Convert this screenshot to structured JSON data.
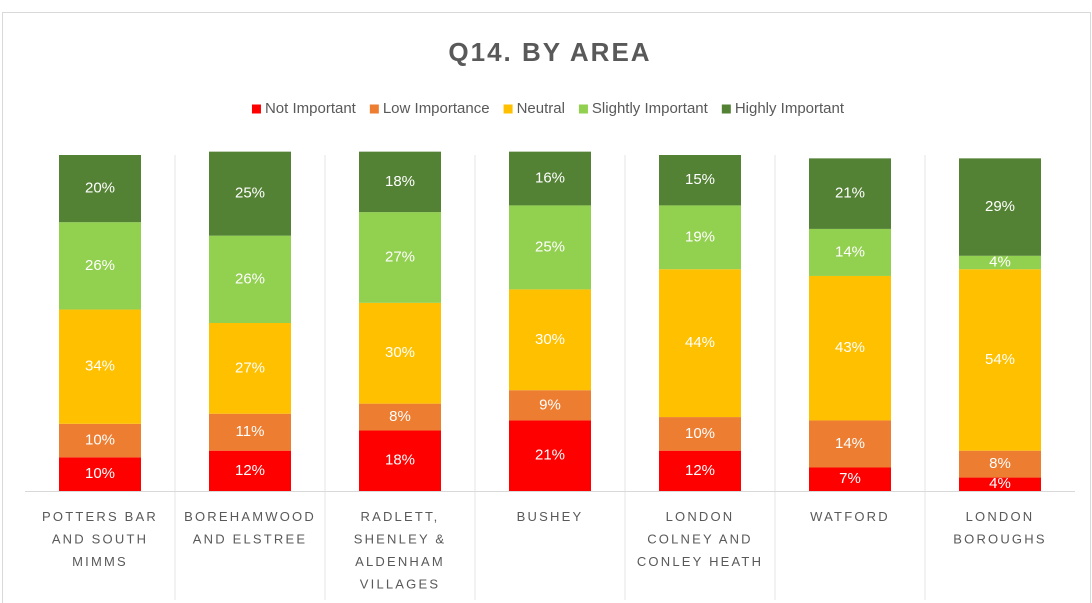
{
  "chart_data": {
    "type": "stacked_bar",
    "title": "Q14. BY AREA",
    "categories": [
      "POTTERS BAR AND SOUTH MIMMS",
      "BOREHAMWOOD AND ELSTREE",
      "RADLETT, SHENLEY & ALDENHAM VILLAGES",
      "BUSHEY",
      "LONDON COLNEY AND CONLEY HEATH",
      "WATFORD",
      "LONDON BOROUGHS"
    ],
    "series": [
      {
        "color": "#ffffff",
        "values": [
          0,
          0,
          0,
          0,
          0,
          0,
          0
        ]
      },
      {
        "name": "Not Important",
        "color": "#ff0000",
        "values": [
          10,
          12,
          18,
          21,
          12,
          7,
          4
        ],
        "value_labels": [
          "10%",
          "12%",
          "18%",
          "21%",
          "12%",
          "7%",
          "4%"
        ]
      },
      {
        "name": "Low Importance",
        "color": "#ed7d31",
        "values": [
          10,
          11,
          8,
          9,
          10,
          14,
          8
        ],
        "value_labels": [
          "10%",
          "11%",
          "8%",
          "9%",
          "10%",
          "14%",
          "8%"
        ]
      },
      {
        "name": "Neutral",
        "color": "#ffc000",
        "values": [
          34,
          27,
          30,
          30,
          44,
          43,
          54
        ],
        "value_labels": [
          "34%",
          "27%",
          "30%",
          "30%",
          "44%",
          "43%",
          "54%"
        ]
      },
      {
        "name": "Slightly Important",
        "color": "#92d050",
        "values": [
          26,
          26,
          27,
          25,
          19,
          14,
          4
        ],
        "value_labels": [
          "26%",
          "26%",
          "27%",
          "25%",
          "19%",
          "14%",
          "4%"
        ]
      },
      {
        "name": "Highly Important",
        "color": "#548235",
        "values": [
          20,
          25,
          18,
          16,
          15,
          21,
          29
        ],
        "value_labels": [
          "20%",
          "25%",
          "18%",
          "16%",
          "15%",
          "21%",
          "29%"
        ]
      }
    ],
    "ylim": [
      0,
      100
    ],
    "legend": "top"
  }
}
